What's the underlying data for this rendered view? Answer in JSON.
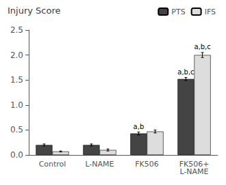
{
  "chart_data": {
    "type": "bar",
    "title": "Injury Score",
    "categories": [
      "Control",
      "L-NAME",
      "FK506",
      "FK506+\nL-NAME"
    ],
    "series": [
      {
        "name": "PTS",
        "color": "#444444",
        "values": [
          0.2,
          0.2,
          0.43,
          1.52
        ],
        "errors": [
          0.02,
          0.02,
          0.03,
          0.03
        ]
      },
      {
        "name": "IFS",
        "color": "#dddddd",
        "values": [
          0.07,
          0.1,
          0.47,
          2.0
        ],
        "errors": [
          0.01,
          0.02,
          0.03,
          0.05
        ]
      }
    ],
    "annotations": [
      {
        "text": "a,b",
        "category": "FK506",
        "series": "PTS"
      },
      {
        "text": "a,b,c",
        "category": "FK506+\nL-NAME",
        "series": "PTS"
      },
      {
        "text": "a,b,c",
        "category": "FK506+\nL-NAME",
        "series": "IFS"
      }
    ],
    "ylim": [
      0,
      2.5
    ],
    "yticks": [
      {
        "value": 0,
        "label": "0.0"
      },
      0.5,
      {
        "value": 1.0,
        "label": "1.0"
      },
      1.5,
      {
        "value": 2.0,
        "label": "2.0"
      },
      2.5
    ],
    "grid": false,
    "legend": "top"
  }
}
